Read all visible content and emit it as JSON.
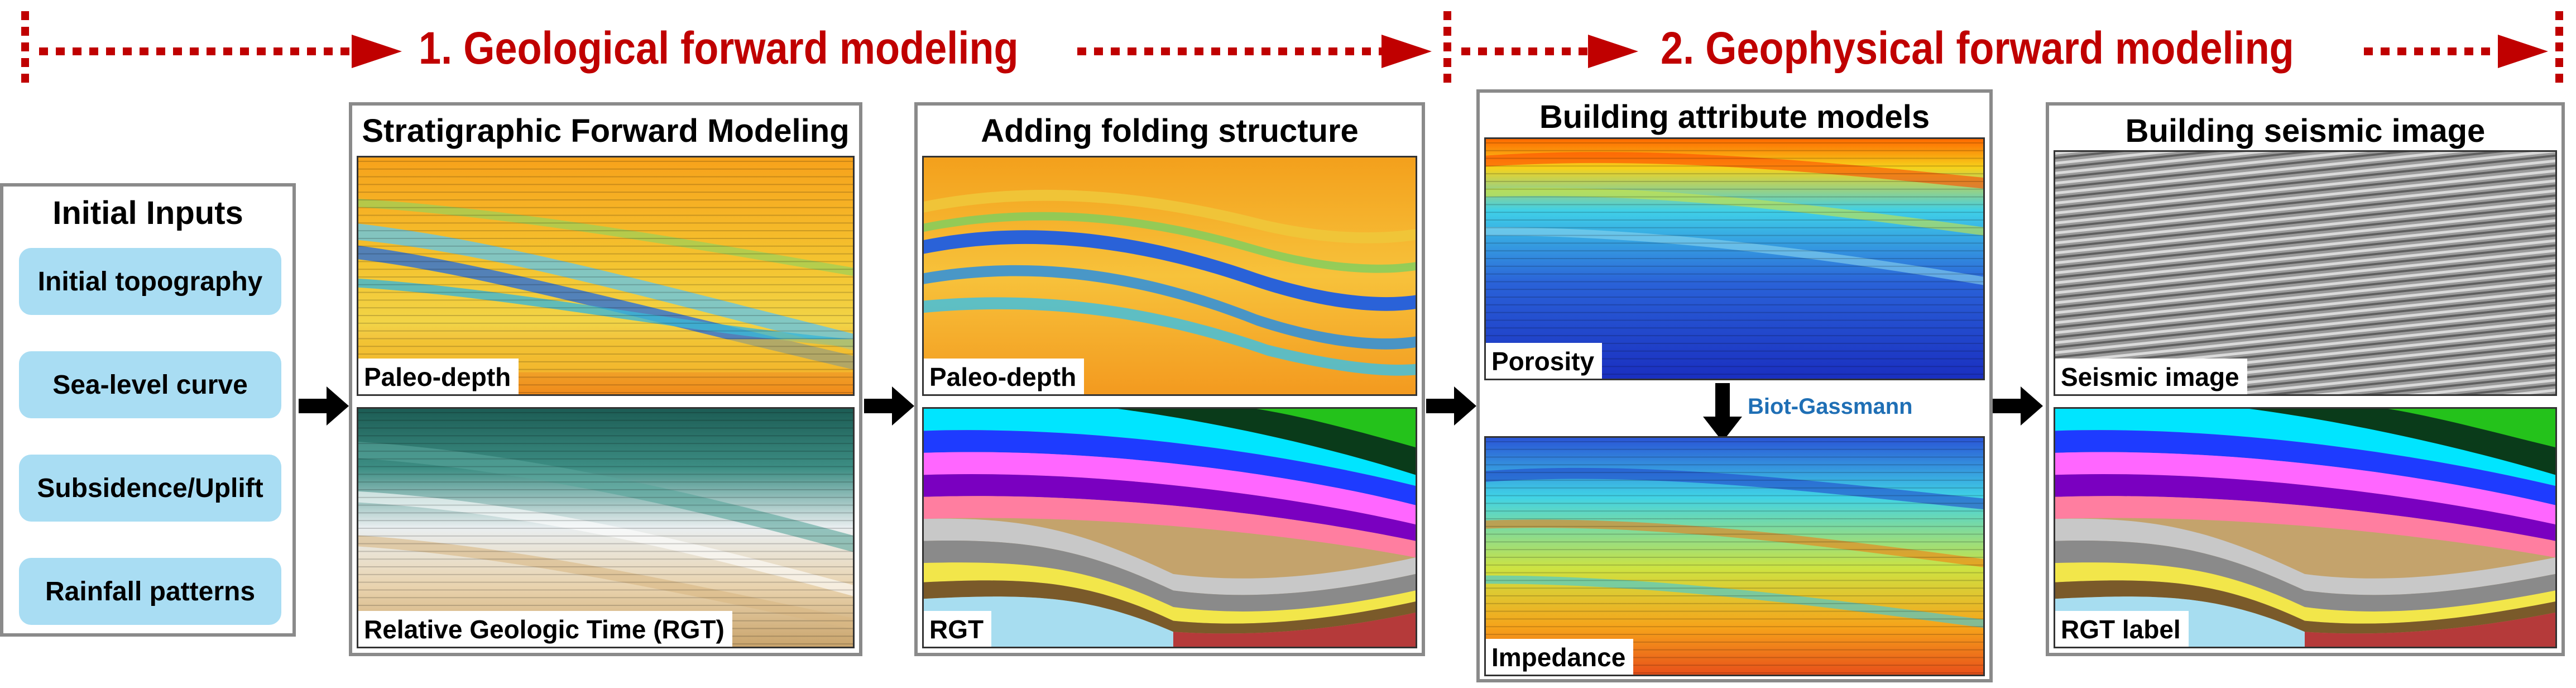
{
  "stages": {
    "geological": "1. Geological forward modeling",
    "geophysical": "2. Geophysical forward modeling"
  },
  "inputs": {
    "title": "Initial Inputs",
    "items": [
      "Initial topography",
      "Sea-level curve",
      "Subsidence/Uplift",
      "Rainfall patterns"
    ]
  },
  "panels": {
    "sfm": {
      "title": "Stratigraphic Forward Modeling",
      "top_label": "Paleo-depth",
      "bottom_label": "Relative Geologic Time (RGT)"
    },
    "folding": {
      "title": "Adding folding structure",
      "top_label": "Paleo-depth",
      "bottom_label": "RGT"
    },
    "attributes": {
      "title": "Building attribute models",
      "top_label": "Porosity",
      "bottom_label": "Impedance",
      "arrow_label": "Biot-Gassmann"
    },
    "seismic": {
      "title": "Building seismic image",
      "top_label": "Seismic image",
      "bottom_label": "RGT label"
    }
  },
  "colors": {
    "stage_text": "#c00000",
    "input_fill": "#a9ddf3",
    "panel_border": "#8a8a8a",
    "arrow_note": "#1f6fb5"
  }
}
